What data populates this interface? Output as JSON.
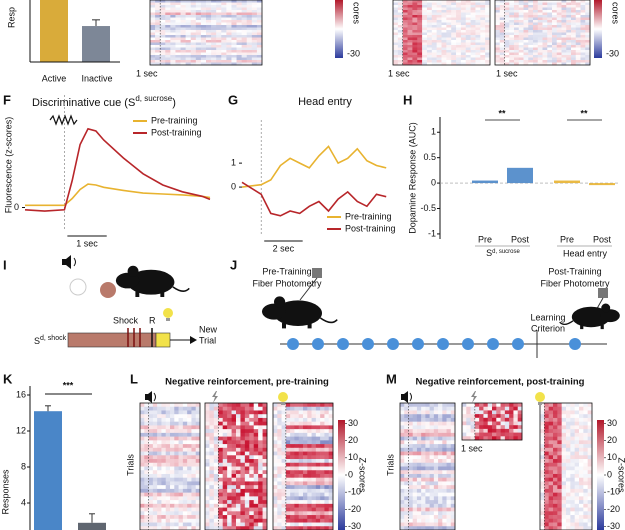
{
  "top_row": {
    "bar": {
      "ylabel": "Resp",
      "categories": [
        "Active",
        "Inactive"
      ],
      "values": [
        5.0,
        2.9
      ],
      "errors": [
        0.3,
        0.5
      ],
      "colors": [
        "#d9ab3a",
        "#7d8797"
      ],
      "ylim": [
        0,
        5
      ]
    },
    "time_labels": [
      "1 sec",
      "1 sec",
      "1 sec"
    ],
    "colorbar_ticks": [
      -30
    ],
    "colorbar_label": "cores"
  },
  "panels": {
    "F": {
      "letter": "F",
      "title": "Discriminative cue (S",
      "title_sup": "d, sucrose",
      "title_end": ")",
      "ylabel": "Fluorescence (z-scores)",
      "ylim": [
        -0.5,
        2.5
      ],
      "yticks": [
        0
      ],
      "xlim": [
        -1,
        3.7
      ],
      "scale_bar": "1 sec",
      "x": [
        -1,
        -0.5,
        0,
        0.2,
        0.4,
        0.6,
        0.8,
        1,
        1.5,
        2,
        2.5,
        3,
        3.5,
        3.7
      ],
      "series": [
        {
          "name": "Pre-training",
          "color": "#e8b330",
          "values": [
            0.05,
            0.05,
            0.05,
            0.2,
            0.4,
            0.52,
            0.5,
            0.45,
            0.38,
            0.32,
            0.3,
            0.28,
            0.25,
            0.22
          ]
        },
        {
          "name": "Post-training",
          "color": "#b8262a",
          "values": [
            -0.05,
            -0.08,
            -0.05,
            0.6,
            1.4,
            1.75,
            1.7,
            1.5,
            1.1,
            0.75,
            0.5,
            0.35,
            0.25,
            0.18
          ]
        }
      ]
    },
    "G": {
      "letter": "G",
      "title": "Head entry",
      "ylim": [
        -2,
        2.8
      ],
      "yticks": [
        0,
        1
      ],
      "xlim": [
        -1,
        6.7
      ],
      "scale_bar": "2 sec",
      "x": [
        -1,
        0,
        0.5,
        1,
        1.5,
        2,
        2.5,
        3,
        3.5,
        4,
        4.5,
        5,
        5.5,
        6,
        6.5
      ],
      "series": [
        {
          "name": "Pre-training",
          "color": "#e8b330",
          "values": [
            0,
            0.1,
            0.3,
            0.9,
            1.2,
            1.0,
            0.8,
            1.3,
            1.7,
            1.0,
            1.2,
            1.6,
            1.1,
            0.9,
            0.8
          ]
        },
        {
          "name": "Post-training",
          "color": "#b8262a",
          "values": [
            0.2,
            -0.3,
            -1.1,
            -1.2,
            -1.0,
            -1.1,
            -0.8,
            -0.6,
            -1.0,
            -0.5,
            -0.2,
            -0.6,
            -0.8,
            -0.3,
            -0.4
          ]
        }
      ]
    },
    "H": {
      "letter": "H",
      "ylabel": "Dopamine Response (AUC)",
      "ylim": [
        -1.1,
        1.3
      ],
      "yticks": [
        -1,
        -0.5,
        0,
        0.5,
        1
      ],
      "categories": [
        "Pre",
        "Post",
        "Pre",
        "Post"
      ],
      "values": [
        0.05,
        0.3,
        0.05,
        -0.04
      ],
      "colors": [
        "#4a86c8",
        "#4a86c8",
        "#e8b330",
        "#e8b330"
      ],
      "groups": [
        {
          "label": "S",
          "sup": "d, sucrose"
        },
        {
          "label": "Head entry"
        }
      ],
      "significance": [
        "**",
        "**"
      ]
    },
    "I": {
      "letter": "I",
      "shock": "Shock",
      "r": "R",
      "stimulus": "S",
      "stimulus_sup": "d, shock",
      "new_trial": [
        "New",
        "Trial"
      ]
    },
    "J": {
      "letter": "J",
      "pre": [
        "Pre-Training",
        "Fiber Photometry"
      ],
      "post": [
        "Post-Training",
        "Fiber Photometry"
      ],
      "criterion": [
        "Learning",
        "Criterion"
      ]
    },
    "K": {
      "letter": "K",
      "ylabel": "Responses",
      "ylim": [
        1,
        17
      ],
      "yticks": [
        4,
        8,
        12,
        16
      ],
      "values": [
        14.2,
        1.8
      ],
      "errors": [
        0.6,
        1.0
      ],
      "colors": [
        "#4a86c8",
        "#5f6670"
      ],
      "significance": "***"
    },
    "L": {
      "letter": "L",
      "title": "Negative reinforcement, pre-training",
      "ylabel": "Trials",
      "colorbar": {
        "lim": [
          -32,
          32
        ],
        "ticks": [
          30,
          20,
          10,
          0,
          -10,
          -20,
          -30
        ],
        "label": "Z-scores"
      }
    },
    "M": {
      "letter": "M",
      "title": "Negative reinforcement, post-training",
      "ylabel": "Trials",
      "scale_bar": "1 sec",
      "colorbar": {
        "lim": [
          -32,
          32
        ],
        "ticks": [
          30,
          20,
          10,
          0,
          -10,
          -20,
          -30
        ],
        "label": "Z-scores"
      }
    }
  }
}
